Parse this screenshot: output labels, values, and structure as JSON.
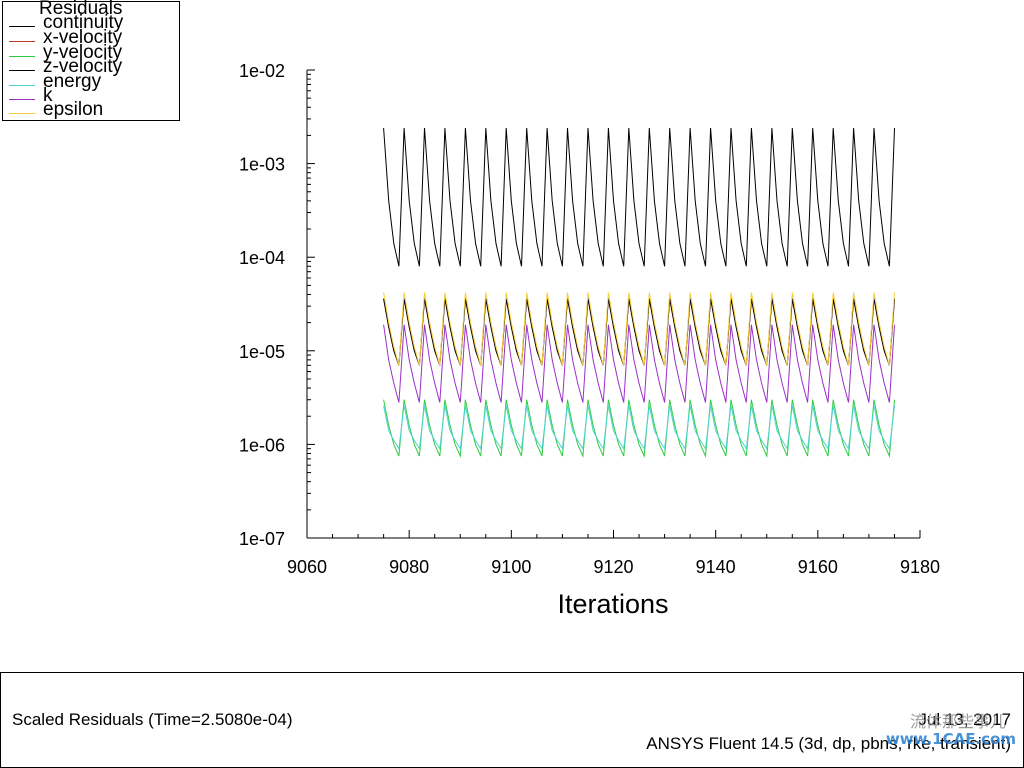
{
  "legend": {
    "title": "Residuals",
    "items": [
      {
        "label": "continuity",
        "color": "#000000"
      },
      {
        "label": "x-velocity",
        "color": "#c0392b"
      },
      {
        "label": "y-velocity",
        "color": "#2ecc40"
      },
      {
        "label": "z-velocity",
        "color": "#000000"
      },
      {
        "label": "energy",
        "color": "#4fd3d3"
      },
      {
        "label": "k",
        "color": "#9b30c8"
      },
      {
        "label": "epsilon",
        "color": "#f4d03f"
      }
    ]
  },
  "footer": {
    "title": "Scaled Residuals  (Time=2.5080e-04)",
    "date": "Jul 13, 2017",
    "version": "ANSYS Fluent 14.5 (3d, dp, pbns, rke, transient)"
  },
  "watermark": {
    "line1": "流体那些事儿",
    "line2": "www.1CAE.com"
  },
  "chart_data": {
    "type": "line",
    "title": "",
    "xlabel": "Iterations",
    "ylabel": "",
    "xlim": [
      9060,
      9180
    ],
    "ylim_log10": [
      -7,
      -2
    ],
    "x_ticks": [
      9060,
      9080,
      9100,
      9120,
      9140,
      9160,
      9180
    ],
    "x_tick_labels": [
      "9060",
      "9080",
      "9100",
      "9120",
      "9140",
      "9160",
      "9180"
    ],
    "y_ticks_log10": [
      -2,
      -3,
      -4,
      -5,
      -6,
      -7
    ],
    "y_tick_labels": [
      "1e-02",
      "1e-03",
      "1e-04",
      "1e-05",
      "1e-06",
      "1e-07"
    ],
    "grid": false,
    "legend_placement": "top-left",
    "x_start": 9075,
    "x_end": 9175,
    "period": 4,
    "series": [
      {
        "name": "continuity",
        "color": "#000000",
        "cycle_values": [
          0.0024,
          0.0004,
          0.00014,
          8e-05
        ]
      },
      {
        "name": "x-velocity",
        "color": "#c0392b",
        "cycle_values": [
          3.6e-05,
          1.8e-05,
          1e-05,
          7e-06
        ]
      },
      {
        "name": "y-velocity",
        "color": "#2ecc40",
        "cycle_values": [
          3e-06,
          1.6e-06,
          1e-06,
          7.5e-07
        ]
      },
      {
        "name": "z-velocity",
        "color": "#000000",
        "cycle_values": [
          3.6e-05,
          1.8e-05,
          1e-05,
          7e-06
        ]
      },
      {
        "name": "energy",
        "color": "#4fd3d3",
        "cycle_values": [
          2.6e-06,
          1.4e-06,
          1.1e-06,
          9e-07
        ]
      },
      {
        "name": "k",
        "color": "#9b30c8",
        "cycle_values": [
          1.9e-05,
          8e-06,
          4.5e-06,
          2.8e-06
        ]
      },
      {
        "name": "epsilon",
        "color": "#f4d03f",
        "cycle_values": [
          4.2e-05,
          2e-05,
          1.1e-05,
          7e-06
        ]
      }
    ]
  }
}
